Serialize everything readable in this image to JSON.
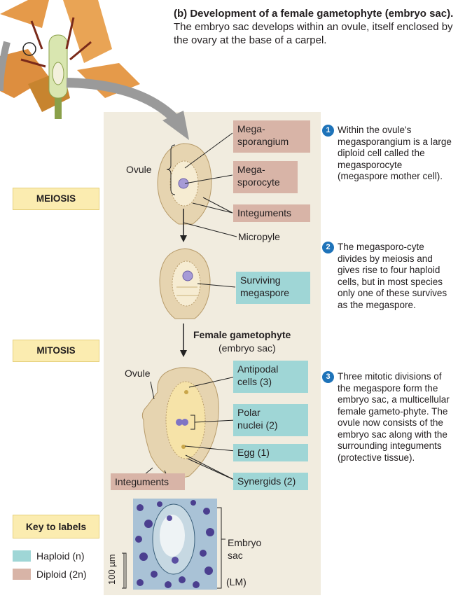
{
  "heading": {
    "bold": "(b) Development of a female gametophyte (embryo sac).",
    "text": "The embryo sac develops within an ovule, itself enclosed by the ovary at the base of a carpel."
  },
  "stages": {
    "meiosis": "MEIOSIS",
    "mitosis": "MITOSIS"
  },
  "labels": {
    "megasporangium": "Mega-\nsporangium",
    "megasporocyte": "Mega-\nsporocyte",
    "integuments_top": "Integuments",
    "micropyle": "Micropyle",
    "ovule_top": "Ovule",
    "surviving_megaspore": "Surviving\nmegaspore",
    "female_gametophyte": "Female gametophyte",
    "embryo_sac_paren": "(embryo sac)",
    "ovule_bottom": "Ovule",
    "antipodal_cells": "Antipodal\ncells (3)",
    "polar_nuclei": "Polar\nnuclei (2)",
    "egg": "Egg (1)",
    "integuments_bottom": "Integuments",
    "synergids": "Synergids (2)",
    "embryo_sac": "Embryo\nsac",
    "scale": "100 µm",
    "lm": "(LM)"
  },
  "steps": [
    {
      "num": "1",
      "text": "Within the ovule's megasporangium is a large diploid cell called the megasporocyte (megaspore mother cell)."
    },
    {
      "num": "2",
      "text": "The megasporo-cyte divides by meiosis and gives rise to four haploid cells, but in most species only one of these survives as the megaspore."
    },
    {
      "num": "3",
      "text": "Three mitotic divisions of the megaspore form the embryo sac, a multicellular female gameto-phyte. The ovule now consists of the embryo sac along with the surrounding integuments (protective tissue)."
    }
  ],
  "key": {
    "title": "Key to labels",
    "haploid": "Haploid (n)",
    "diploid": "Diploid (2n)"
  },
  "colors": {
    "haploid": "#9fd6d6",
    "diploid": "#d8b4a7",
    "stage": "#fbecb0",
    "step_circle": "#1e73b9"
  }
}
